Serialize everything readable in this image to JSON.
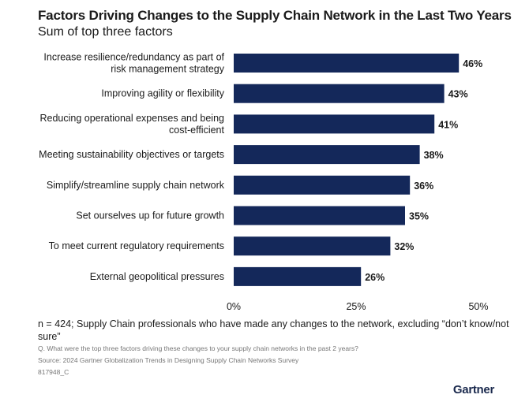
{
  "chart_data": {
    "type": "bar",
    "orientation": "horizontal",
    "title": "Factors Driving Changes to the Supply Chain Network in the Last Two Years",
    "subtitle": "Sum of top three factors",
    "categories": [
      [
        "Increase resilience/redundancy as part of",
        "risk management strategy"
      ],
      [
        "Improving agility or flexibility"
      ],
      [
        "Reducing operational expenses and being",
        "cost-efficient"
      ],
      [
        "Meeting sustainability objectives or targets"
      ],
      [
        "Simplify/streamline supply chain network"
      ],
      [
        "Set ourselves up for future growth"
      ],
      [
        "To meet current regulatory requirements"
      ],
      [
        "External geopolitical pressures"
      ]
    ],
    "values": [
      46,
      43,
      41,
      38,
      36,
      35,
      32,
      26
    ],
    "data_labels": [
      "46%",
      "43%",
      "41%",
      "38%",
      "36%",
      "35%",
      "32%",
      "26%"
    ],
    "xlim": [
      0,
      50
    ],
    "x_ticks": [
      0,
      25,
      50
    ],
    "x_tick_labels": [
      "0%",
      "25%",
      "50%"
    ],
    "grid": false,
    "bar_color": "#14285a"
  },
  "footer": {
    "note": "n = 424; Supply Chain professionals who have made any changes to the network, excluding “don’t know/not sure”",
    "question": "Q. What were the top three factors driving these changes to your supply chain networks in the past 2 years?",
    "source": "Source: 2024 Gartner Globalization Trends in Designing Supply Chain Networks Survey",
    "id": "817948_C"
  },
  "logo": "Gartner"
}
